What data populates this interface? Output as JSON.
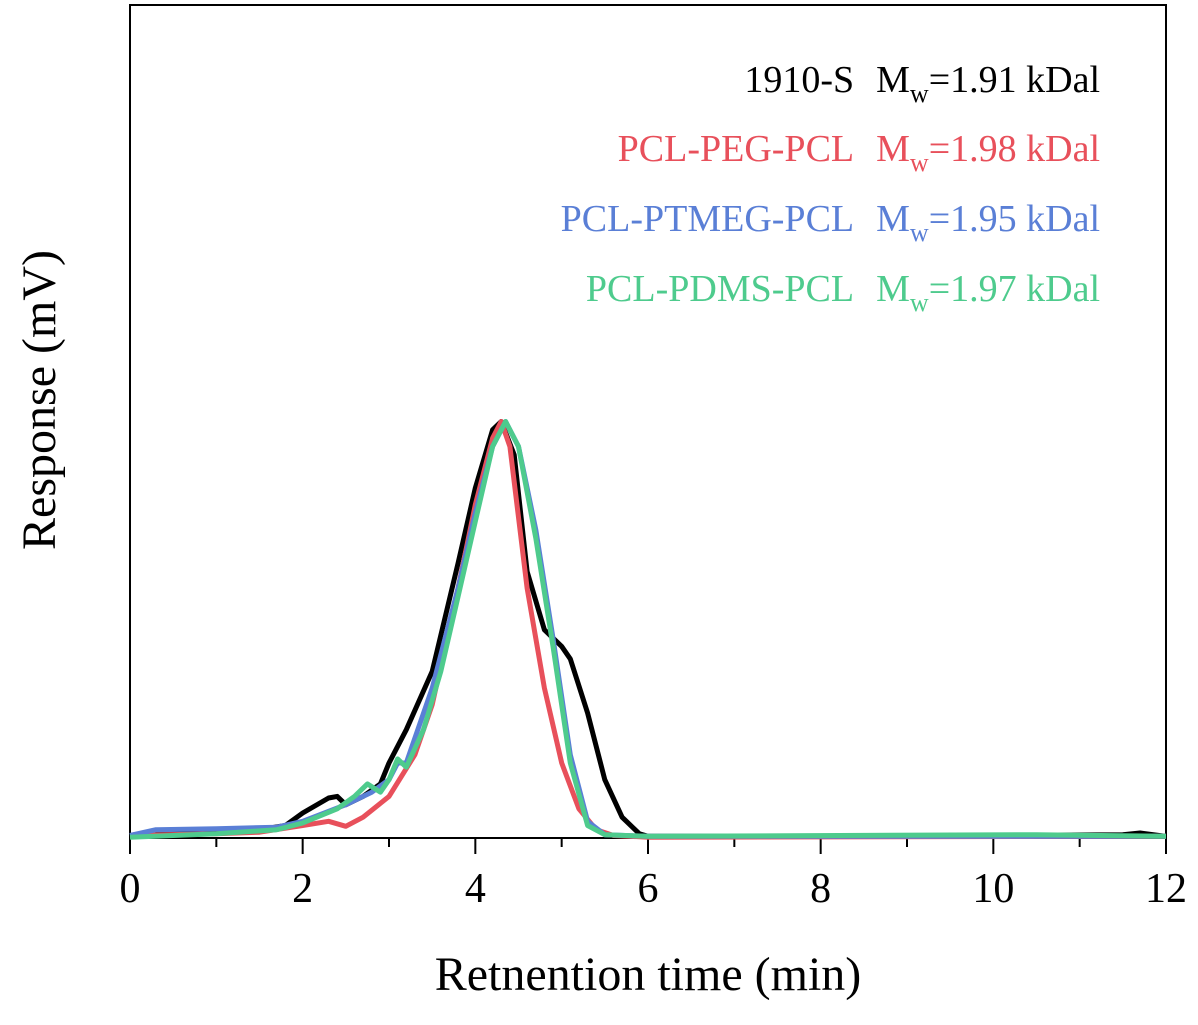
{
  "chart_data": {
    "type": "line",
    "x_label": "Retnention time (min)",
    "y_label": "Response (mV)",
    "xlim": [
      0,
      12
    ],
    "xticks": [
      0,
      2,
      4,
      6,
      8,
      10,
      12
    ],
    "xminorticks": [
      1,
      3,
      5,
      7,
      9,
      11
    ],
    "ylim": [
      0,
      1
    ],
    "series": [
      {
        "name": "1910-S",
        "color": "#000000",
        "label_parts": [
          "M",
          "w",
          "=1.91 kDal"
        ],
        "x": [
          0,
          0.3,
          1,
          1.5,
          1.8,
          2.0,
          2.3,
          2.4,
          2.5,
          2.7,
          2.9,
          3.0,
          3.2,
          3.5,
          3.8,
          4.0,
          4.2,
          4.3,
          4.45,
          4.6,
          4.8,
          5.0,
          5.1,
          5.3,
          5.5,
          5.7,
          5.9,
          6,
          8,
          11.5,
          11.7,
          12
        ],
        "values": [
          0.003,
          0.008,
          0.009,
          0.01,
          0.015,
          0.03,
          0.048,
          0.05,
          0.04,
          0.05,
          0.065,
          0.09,
          0.13,
          0.2,
          0.33,
          0.42,
          0.49,
          0.5,
          0.46,
          0.32,
          0.25,
          0.23,
          0.215,
          0.15,
          0.07,
          0.025,
          0.005,
          0.002,
          0.002,
          0.004,
          0.006,
          0.002
        ]
      },
      {
        "name": "PCL-PEG-PCL",
        "color": "#e8505b",
        "label_parts": [
          "M",
          "w",
          "=1.98 kDal"
        ],
        "x": [
          0,
          1,
          1.5,
          2,
          2.3,
          2.5,
          2.7,
          3.0,
          3.3,
          3.5,
          3.8,
          4.0,
          4.2,
          4.3,
          4.4,
          4.6,
          4.8,
          5.0,
          5.2,
          5.4,
          5.6,
          6,
          12
        ],
        "values": [
          0.003,
          0.005,
          0.007,
          0.015,
          0.02,
          0.014,
          0.025,
          0.05,
          0.1,
          0.16,
          0.3,
          0.4,
          0.48,
          0.5,
          0.47,
          0.3,
          0.18,
          0.09,
          0.035,
          0.01,
          0.003,
          0.001,
          0.002
        ]
      },
      {
        "name": "PCL-PTMEG-PCL",
        "color": "#5a7fd6",
        "label_parts": [
          "M",
          "w",
          "=1.95 kDal"
        ],
        "x": [
          0,
          0.3,
          1,
          1.7,
          2.0,
          2.5,
          2.8,
          3.0,
          3.1,
          3.2,
          3.5,
          3.8,
          4.0,
          4.2,
          4.35,
          4.5,
          4.7,
          4.9,
          5.1,
          5.3,
          5.5,
          6,
          12
        ],
        "values": [
          0.003,
          0.01,
          0.011,
          0.013,
          0.02,
          0.04,
          0.055,
          0.07,
          0.09,
          0.09,
          0.18,
          0.3,
          0.39,
          0.47,
          0.5,
          0.47,
          0.37,
          0.24,
          0.1,
          0.02,
          0.004,
          0.002,
          0.002
        ]
      },
      {
        "name": "PCL-PDMS-PCL",
        "color": "#4ecb8d",
        "label_parts": [
          "M",
          "w",
          "=1.97 kDal"
        ],
        "x": [
          0,
          1,
          1.7,
          2.0,
          2.4,
          2.6,
          2.75,
          2.9,
          3.0,
          3.1,
          3.2,
          3.4,
          3.6,
          3.8,
          4.0,
          4.2,
          4.35,
          4.5,
          4.7,
          4.9,
          5.1,
          5.3,
          5.5,
          6,
          10.5,
          12
        ],
        "values": [
          0.001,
          0.005,
          0.01,
          0.018,
          0.035,
          0.05,
          0.065,
          0.055,
          0.07,
          0.095,
          0.085,
          0.13,
          0.2,
          0.29,
          0.38,
          0.47,
          0.5,
          0.47,
          0.36,
          0.23,
          0.09,
          0.015,
          0.004,
          0.002,
          0.004,
          0.002
        ]
      }
    ]
  }
}
